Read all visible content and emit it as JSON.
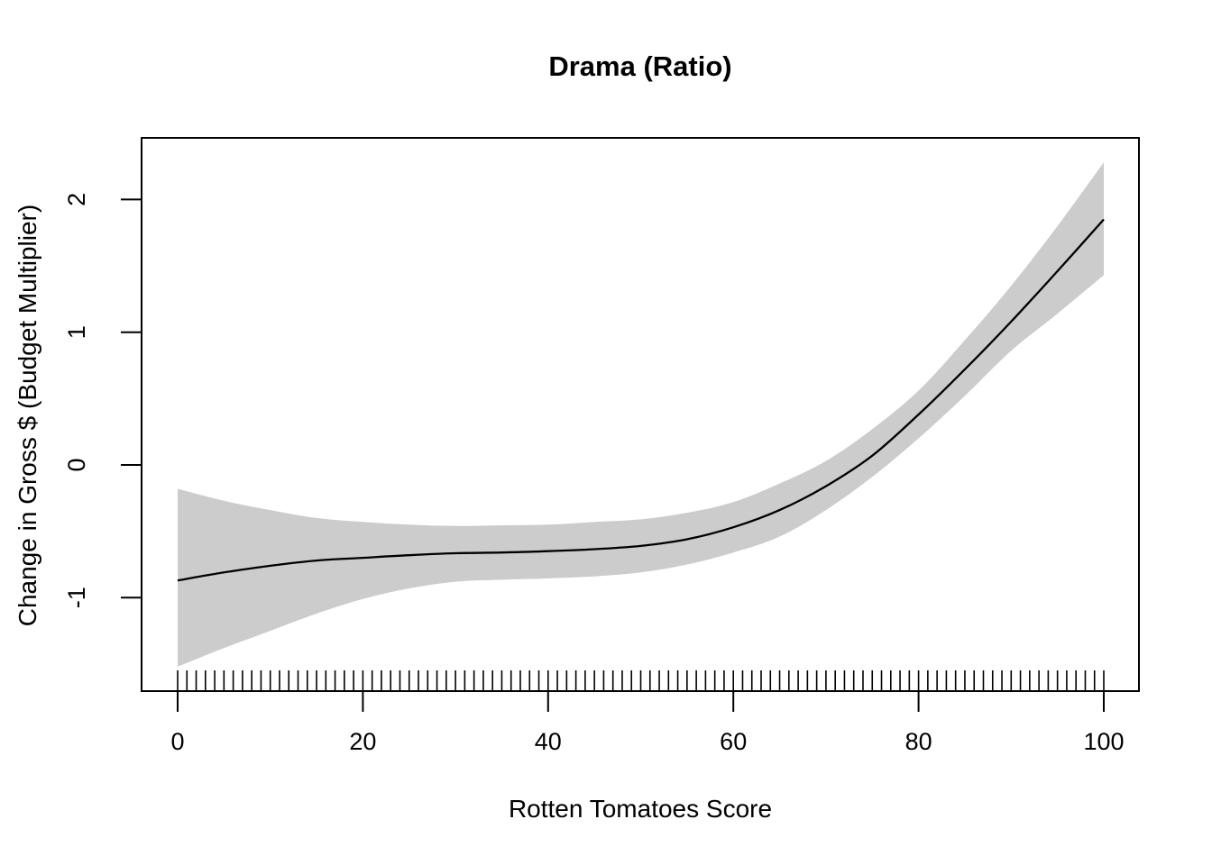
{
  "chart_data": {
    "type": "line",
    "title": "Drama (Ratio)",
    "xlabel": "Rotten Tomatoes Score",
    "ylabel": "Change in Gross $ (Budget Multiplier)",
    "x_ticks": [
      0,
      20,
      40,
      60,
      80,
      100
    ],
    "y_ticks": [
      -1,
      0,
      1,
      2
    ],
    "xlim": [
      -4,
      104
    ],
    "ylim": [
      -1.7,
      2.46
    ],
    "grid": false,
    "legend": false,
    "line_color": "#000000",
    "band_color": "#cccccc",
    "x": [
      0,
      5,
      10,
      15,
      20,
      25,
      30,
      35,
      40,
      45,
      50,
      55,
      60,
      65,
      70,
      75,
      80,
      85,
      90,
      95,
      100
    ],
    "series": [
      {
        "name": "smooth_fit",
        "values": [
          -0.87,
          -0.81,
          -0.76,
          -0.72,
          -0.7,
          -0.68,
          -0.665,
          -0.66,
          -0.65,
          -0.635,
          -0.61,
          -0.56,
          -0.47,
          -0.34,
          -0.16,
          0.07,
          0.38,
          0.72,
          1.08,
          1.46,
          1.85
        ]
      },
      {
        "name": "ci_upper",
        "values": [
          -0.18,
          -0.27,
          -0.34,
          -0.4,
          -0.43,
          -0.45,
          -0.46,
          -0.455,
          -0.45,
          -0.43,
          -0.41,
          -0.36,
          -0.28,
          -0.14,
          0.03,
          0.27,
          0.56,
          0.94,
          1.35,
          1.8,
          2.28
        ]
      },
      {
        "name": "ci_lower",
        "values": [
          -1.52,
          -1.38,
          -1.25,
          -1.12,
          -1.01,
          -0.93,
          -0.88,
          -0.865,
          -0.855,
          -0.84,
          -0.81,
          -0.75,
          -0.66,
          -0.54,
          -0.34,
          -0.09,
          0.2,
          0.52,
          0.86,
          1.14,
          1.43
        ]
      }
    ],
    "rug_x": [
      0,
      1,
      2,
      3,
      4,
      5,
      6,
      7,
      8,
      9,
      10,
      11,
      12,
      13,
      14,
      15,
      16,
      17,
      18,
      19,
      20,
      21,
      22,
      23,
      24,
      25,
      26,
      27,
      28,
      29,
      30,
      31,
      32,
      33,
      34,
      35,
      36,
      37,
      38,
      39,
      40,
      41,
      42,
      43,
      44,
      45,
      46,
      47,
      48,
      49,
      50,
      51,
      52,
      53,
      54,
      55,
      56,
      57,
      58,
      59,
      60,
      61,
      62,
      63,
      64,
      65,
      66,
      67,
      68,
      69,
      70,
      71,
      72,
      73,
      74,
      75,
      76,
      77,
      78,
      79,
      80,
      81,
      82,
      83,
      84,
      85,
      86,
      87,
      88,
      89,
      90,
      91,
      92,
      93,
      94,
      95,
      96,
      97,
      98,
      99,
      100
    ]
  }
}
